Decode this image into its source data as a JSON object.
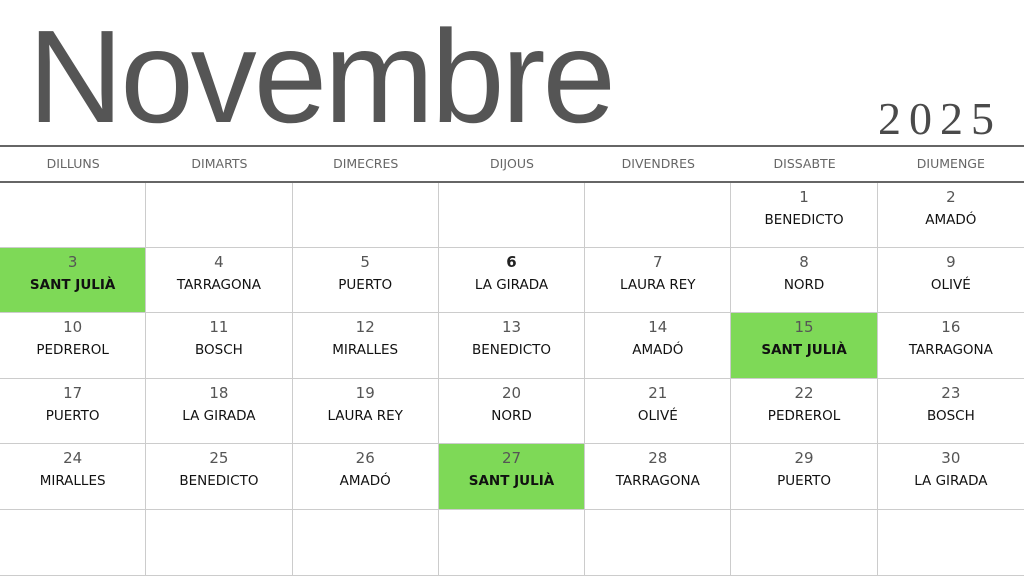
{
  "header": {
    "month": "Novembre",
    "year": "2025"
  },
  "highlight_color": "#7ed957",
  "weekdays": [
    "DILLUNS",
    "DIMARTS",
    "DIMECRES",
    "DIJOUS",
    "DIVENDRES",
    "DISSABTE",
    "DIUMENGE"
  ],
  "weeks": [
    [
      {},
      {},
      {},
      {},
      {},
      {
        "day": "1",
        "name": "BENEDICTO"
      },
      {
        "day": "2",
        "name": "AMADÓ"
      }
    ],
    [
      {
        "day": "3",
        "name": "SANT JULIÀ",
        "highlight": true
      },
      {
        "day": "4",
        "name": "TARRAGONA"
      },
      {
        "day": "5",
        "name": "PUERTO"
      },
      {
        "day": "6",
        "name": "LA GIRADA",
        "bold": true
      },
      {
        "day": "7",
        "name": "LAURA REY"
      },
      {
        "day": "8",
        "name": "NORD"
      },
      {
        "day": "9",
        "name": "OLIVÉ"
      }
    ],
    [
      {
        "day": "10",
        "name": "PEDREROL"
      },
      {
        "day": "11",
        "name": "BOSCH"
      },
      {
        "day": "12",
        "name": "MIRALLES"
      },
      {
        "day": "13",
        "name": "BENEDICTO"
      },
      {
        "day": "14",
        "name": "AMADÓ"
      },
      {
        "day": "15",
        "name": "SANT JULIÀ",
        "highlight": true
      },
      {
        "day": "16",
        "name": "TARRAGONA"
      }
    ],
    [
      {
        "day": "17",
        "name": "PUERTO"
      },
      {
        "day": "18",
        "name": "LA GIRADA"
      },
      {
        "day": "19",
        "name": "LAURA REY"
      },
      {
        "day": "20",
        "name": "NORD"
      },
      {
        "day": "21",
        "name": "OLIVÉ"
      },
      {
        "day": "22",
        "name": "PEDREROL"
      },
      {
        "day": "23",
        "name": "BOSCH"
      }
    ],
    [
      {
        "day": "24",
        "name": "MIRALLES"
      },
      {
        "day": "25",
        "name": "BENEDICTO"
      },
      {
        "day": "26",
        "name": "AMADÓ"
      },
      {
        "day": "27",
        "name": "SANT JULIÀ",
        "highlight": true
      },
      {
        "day": "28",
        "name": "TARRAGONA"
      },
      {
        "day": "29",
        "name": "PUERTO"
      },
      {
        "day": "30",
        "name": "LA GIRADA"
      }
    ],
    [
      {},
      {},
      {},
      {},
      {},
      {},
      {}
    ]
  ]
}
